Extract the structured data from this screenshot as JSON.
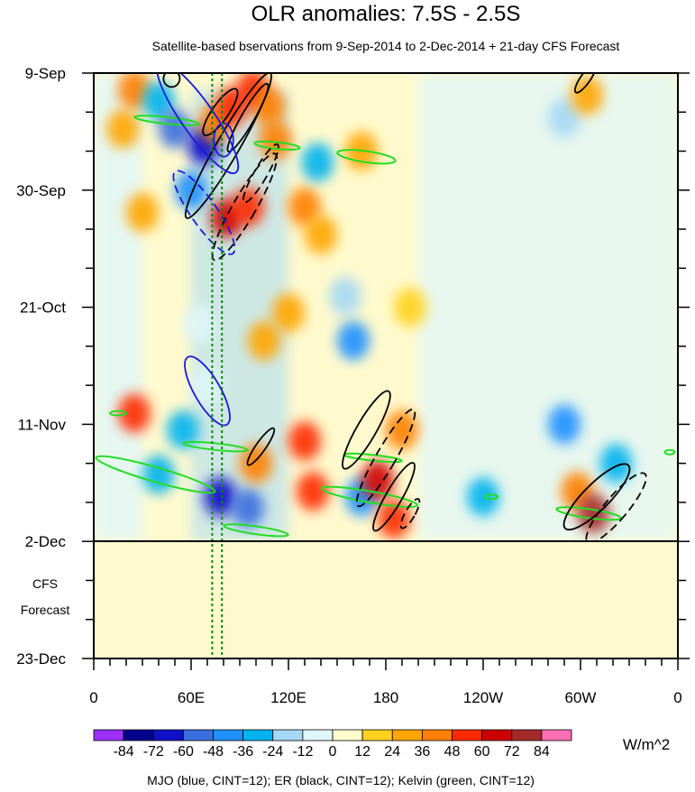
{
  "chart_data": {
    "type": "heatmap",
    "title": "OLR anomalies: 7.5S - 2.5S",
    "subtitle": "Satellite-based bservations from 9-Sep-2014 to 2-Dec-2014 + 21-day CFS Forecast",
    "xlabel": "",
    "ylabel": "",
    "x_range_deg_east": [
      0,
      360
    ],
    "x_ticks": [
      {
        "deg": 0,
        "label": "0"
      },
      {
        "deg": 60,
        "label": "60E"
      },
      {
        "deg": 120,
        "label": "120E"
      },
      {
        "deg": 180,
        "label": "180"
      },
      {
        "deg": 240,
        "label": "120W"
      },
      {
        "deg": 300,
        "label": "60W"
      },
      {
        "deg": 360,
        "label": "0"
      }
    ],
    "y_range_days_since_9sep2014": [
      0,
      105
    ],
    "y_ticks": [
      {
        "day": 0,
        "label": "9-Sep"
      },
      {
        "day": 21,
        "label": "30-Sep"
      },
      {
        "day": 42,
        "label": "21-Oct"
      },
      {
        "day": 63,
        "label": "11-Nov"
      },
      {
        "day": 84,
        "label": "2-Dec"
      },
      {
        "day": 105,
        "label": "23-Dec"
      }
    ],
    "observation_end_label": "2-Dec",
    "forecast_label_line1": "CFS",
    "forecast_label_line2": "Forecast",
    "colorbar": {
      "levels": [
        "-84",
        "-72",
        "-60",
        "-48",
        "-36",
        "-24",
        "-12",
        "0",
        "12",
        "24",
        "36",
        "48",
        "60",
        "72",
        "84"
      ],
      "colors": [
        "#9b30ff",
        "#00008b",
        "#1010c8",
        "#3a6fe0",
        "#1e90ff",
        "#00b2ee",
        "#a6d8f5",
        "#e0f7fa",
        "#fffacd",
        "#ffd21f",
        "#ffa500",
        "#ff7f00",
        "#ff2a00",
        "#cd0000",
        "#a52a2a",
        "#ff6eb4"
      ],
      "units": "W/m^2"
    },
    "overlays": "MJO (blue, CINT=12); ER (black, CINT=12); Kelvin (green, CINT=12)",
    "overlay_colors": {
      "mjo": "#1a1adc",
      "er": "#000000",
      "kelvin": "#22dd22",
      "guide": "#118811"
    },
    "guide_lines_deg_east": [
      73,
      79
    ],
    "anomaly_features": [
      {
        "lon": 18,
        "day": 10,
        "value": 24
      },
      {
        "lon": 25,
        "day": 3,
        "value": 36
      },
      {
        "lon": 40,
        "day": 5,
        "value": -36
      },
      {
        "lon": 50,
        "day": 10,
        "value": -60
      },
      {
        "lon": 68,
        "day": 13,
        "value": -72
      },
      {
        "lon": 75,
        "day": 9,
        "value": 36
      },
      {
        "lon": 85,
        "day": 6,
        "value": 48
      },
      {
        "lon": 98,
        "day": 3,
        "value": 48
      },
      {
        "lon": 108,
        "day": 6,
        "value": 36
      },
      {
        "lon": 112,
        "day": 12,
        "value": 36
      },
      {
        "lon": 60,
        "day": 21,
        "value": -48
      },
      {
        "lon": 82,
        "day": 26,
        "value": 60
      },
      {
        "lon": 95,
        "day": 24,
        "value": 48
      },
      {
        "lon": 130,
        "day": 24,
        "value": 36
      },
      {
        "lon": 140,
        "day": 29,
        "value": 24
      },
      {
        "lon": 30,
        "day": 25,
        "value": 24
      },
      {
        "lon": 155,
        "day": 40,
        "value": -24
      },
      {
        "lon": 160,
        "day": 48,
        "value": -48
      },
      {
        "lon": 138,
        "day": 16,
        "value": -36
      },
      {
        "lon": 165,
        "day": 14,
        "value": 24
      },
      {
        "lon": 65,
        "day": 45,
        "value": -12
      },
      {
        "lon": 105,
        "day": 48,
        "value": 24
      },
      {
        "lon": 120,
        "day": 43,
        "value": 24
      },
      {
        "lon": 195,
        "day": 42,
        "value": 12
      },
      {
        "lon": 290,
        "day": 8,
        "value": -24
      },
      {
        "lon": 304,
        "day": 4,
        "value": 24
      },
      {
        "lon": 25,
        "day": 61,
        "value": 48
      },
      {
        "lon": 55,
        "day": 64,
        "value": -36
      },
      {
        "lon": 78,
        "day": 76,
        "value": -72
      },
      {
        "lon": 95,
        "day": 78,
        "value": -60
      },
      {
        "lon": 100,
        "day": 70,
        "value": 36
      },
      {
        "lon": 130,
        "day": 66,
        "value": 48
      },
      {
        "lon": 135,
        "day": 75,
        "value": 48
      },
      {
        "lon": 165,
        "day": 76,
        "value": -48
      },
      {
        "lon": 175,
        "day": 73,
        "value": 60
      },
      {
        "lon": 185,
        "day": 80,
        "value": 48
      },
      {
        "lon": 190,
        "day": 64,
        "value": 36
      },
      {
        "lon": 290,
        "day": 63,
        "value": -48
      },
      {
        "lon": 298,
        "day": 75,
        "value": 36
      },
      {
        "lon": 308,
        "day": 79,
        "value": 72
      },
      {
        "lon": 322,
        "day": 70,
        "value": -36
      },
      {
        "lon": 240,
        "day": 76,
        "value": -36
      },
      {
        "lon": 40,
        "day": 72,
        "value": -36
      },
      {
        "lon": 70,
        "day": 56,
        "value": -12
      }
    ],
    "mjo_contours": [
      {
        "lon": 64,
        "day": 8,
        "rx_deg": 10,
        "ry_days": 12,
        "angle": -35,
        "dashed": false
      },
      {
        "lon": 80,
        "day": 12,
        "rx_deg": 6,
        "ry_days": 3,
        "angle": 0,
        "dashed": false
      },
      {
        "lon": 70,
        "day": 57,
        "rx_deg": 8,
        "ry_days": 7,
        "angle": -30,
        "dashed": false
      },
      {
        "lon": 68,
        "day": 25,
        "rx_deg": 8,
        "ry_days": 9,
        "angle": -35,
        "dashed": true
      }
    ],
    "er_contours": [
      {
        "lon": 83,
        "day": 13,
        "rx_deg": 7,
        "ry_days": 15,
        "angle": 30,
        "dashed": false
      },
      {
        "lon": 78,
        "day": 7,
        "rx_deg": 5,
        "ry_days": 5,
        "angle": 35,
        "dashed": false
      },
      {
        "lon": 95,
        "day": 8,
        "rx_deg": 4,
        "ry_days": 7,
        "angle": 30,
        "dashed": false
      },
      {
        "lon": 48,
        "day": 1,
        "rx_deg": 5,
        "ry_days": 1.5,
        "angle": 0,
        "dashed": false
      },
      {
        "lon": 93,
        "day": 24,
        "rx_deg": 7,
        "ry_days": 11,
        "angle": 30,
        "dashed": true
      },
      {
        "lon": 103,
        "day": 18,
        "rx_deg": 4,
        "ry_days": 6,
        "angle": 30,
        "dashed": true
      },
      {
        "lon": 103,
        "day": 67,
        "rx_deg": 3,
        "ry_days": 4,
        "angle": 35,
        "dashed": false
      },
      {
        "lon": 168,
        "day": 64,
        "rx_deg": 6,
        "ry_days": 8,
        "angle": 30,
        "dashed": false
      },
      {
        "lon": 180,
        "day": 69,
        "rx_deg": 6,
        "ry_days": 10,
        "angle": 30,
        "dashed": true
      },
      {
        "lon": 185,
        "day": 76,
        "rx_deg": 5,
        "ry_days": 7,
        "angle": 30,
        "dashed": false
      },
      {
        "lon": 195,
        "day": 79,
        "rx_deg": 3,
        "ry_days": 3,
        "angle": 30,
        "dashed": true
      },
      {
        "lon": 310,
        "day": 76,
        "rx_deg": 8,
        "ry_days": 8,
        "angle": 45,
        "dashed": false
      },
      {
        "lon": 322,
        "day": 78,
        "rx_deg": 7,
        "ry_days": 8,
        "angle": 40,
        "dashed": true
      },
      {
        "lon": 303,
        "day": 1,
        "rx_deg": 3,
        "ry_days": 3,
        "angle": 35,
        "dashed": false
      }
    ],
    "kelvin_contours": [
      {
        "lon": 45,
        "day": 8.5,
        "rx_deg": 20,
        "ry_days": 0.6,
        "angle": 6
      },
      {
        "lon": 113,
        "day": 13,
        "rx_deg": 14,
        "ry_days": 0.6,
        "angle": 6
      },
      {
        "lon": 168,
        "day": 15,
        "rx_deg": 18,
        "ry_days": 1.0,
        "angle": 8
      },
      {
        "lon": 38,
        "day": 72,
        "rx_deg": 38,
        "ry_days": 1.3,
        "angle": 16
      },
      {
        "lon": 75,
        "day": 67,
        "rx_deg": 20,
        "ry_days": 0.6,
        "angle": 6
      },
      {
        "lon": 100,
        "day": 82,
        "rx_deg": 20,
        "ry_days": 0.7,
        "angle": 8
      },
      {
        "lon": 170,
        "day": 76,
        "rx_deg": 30,
        "ry_days": 1.0,
        "angle": 10
      },
      {
        "lon": 172,
        "day": 69,
        "rx_deg": 18,
        "ry_days": 0.5,
        "angle": 6
      },
      {
        "lon": 305,
        "day": 79,
        "rx_deg": 20,
        "ry_days": 0.8,
        "angle": 8
      },
      {
        "lon": 245,
        "day": 76,
        "rx_deg": 4,
        "ry_days": 0.4,
        "angle": 0
      },
      {
        "lon": 15,
        "day": 61,
        "rx_deg": 5,
        "ry_days": 0.4,
        "angle": 0
      },
      {
        "lon": 355,
        "day": 68,
        "rx_deg": 3,
        "ry_days": 0.4,
        "angle": 0
      }
    ]
  }
}
